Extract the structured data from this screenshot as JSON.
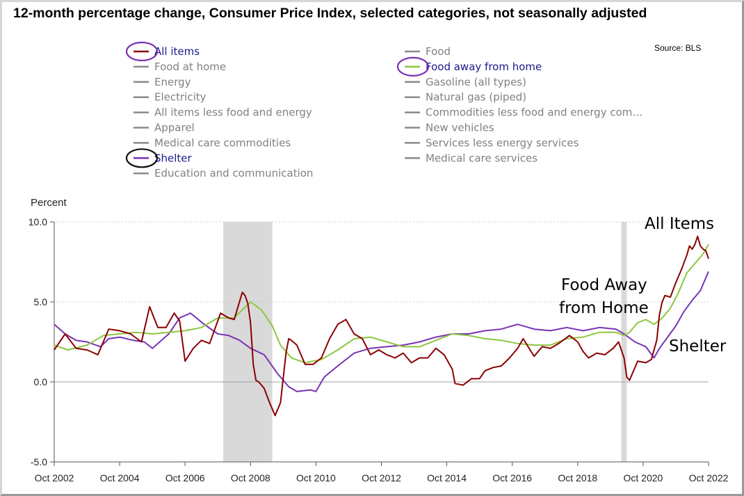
{
  "title": "12-month percentage change, Consumer Price Index, selected categories, not seasonally adjusted",
  "source": "Source: BLS",
  "legend": {
    "left": [
      {
        "label": "All items",
        "color": "#8b0000",
        "active": true
      },
      {
        "label": "Food at home",
        "color": "#8a8a8a",
        "active": false
      },
      {
        "label": "Energy",
        "color": "#8a8a8a",
        "active": false
      },
      {
        "label": "Electricity",
        "color": "#8a8a8a",
        "active": false
      },
      {
        "label": "All items less food and energy",
        "color": "#8a8a8a",
        "active": false
      },
      {
        "label": "Apparel",
        "color": "#8a8a8a",
        "active": false
      },
      {
        "label": "Medical care commodities",
        "color": "#8a8a8a",
        "active": false
      },
      {
        "label": "Shelter",
        "color": "#7a32b4",
        "active": true
      },
      {
        "label": "Education and communication",
        "color": "#8a8a8a",
        "active": false
      }
    ],
    "right": [
      {
        "label": "Food",
        "color": "#8a8a8a",
        "active": false
      },
      {
        "label": "Food away from home",
        "color": "#8dc63f",
        "active": true
      },
      {
        "label": "Gasoline (all types)",
        "color": "#8a8a8a",
        "active": false
      },
      {
        "label": "Natural gas (piped)",
        "color": "#8a8a8a",
        "active": false
      },
      {
        "label": "Commodities less food and energy com…",
        "color": "#8a8a8a",
        "active": false
      },
      {
        "label": "New vehicles",
        "color": "#8a8a8a",
        "active": false
      },
      {
        "label": "Services less energy services",
        "color": "#8a8a8a",
        "active": false
      },
      {
        "label": "Medical care services",
        "color": "#8a8a8a",
        "active": false
      }
    ]
  },
  "annotations": [
    {
      "text": "All Items"
    },
    {
      "text": "Food Away"
    },
    {
      "text": "from Home"
    },
    {
      "text": "Shelter"
    }
  ],
  "chart_data": {
    "type": "line",
    "ylabel": "Percent",
    "ylim": [
      -5.0,
      10.0
    ],
    "xlim": [
      "2002-10",
      "2022-10"
    ],
    "y_ticks": [
      -5.0,
      0.0,
      5.0,
      10.0
    ],
    "y_tick_labels": [
      "-5.0",
      "0.0",
      "5.0",
      "10.0"
    ],
    "x_ticks": [
      "2002-10",
      "2004-10",
      "2006-10",
      "2008-10",
      "2010-10",
      "2012-10",
      "2014-10",
      "2016-10",
      "2018-10",
      "2020-10",
      "2022-10"
    ],
    "x_tick_labels": [
      "Oct 2002",
      "Oct 2004",
      "Oct 2006",
      "Oct 2008",
      "Oct 2010",
      "Oct 2012",
      "Oct 2014",
      "Oct 2016",
      "Oct 2018",
      "Oct 2020",
      "Oct 2022"
    ],
    "recessions": [
      [
        "2007-12",
        "2009-06"
      ],
      [
        "2020-02",
        "2020-04"
      ]
    ],
    "grid": "dotted horizontal at 5.0 and 10.0",
    "legend_position": "top",
    "series": [
      {
        "name": "All items",
        "color": "#8b0000",
        "points": [
          [
            "2002-10",
            2.0
          ],
          [
            "2003-02",
            3.0
          ],
          [
            "2003-06",
            2.1
          ],
          [
            "2003-10",
            2.0
          ],
          [
            "2004-02",
            1.7
          ],
          [
            "2004-06",
            3.3
          ],
          [
            "2004-10",
            3.2
          ],
          [
            "2005-02",
            3.0
          ],
          [
            "2005-06",
            2.5
          ],
          [
            "2005-09",
            4.7
          ],
          [
            "2005-12",
            3.4
          ],
          [
            "2006-03",
            3.4
          ],
          [
            "2006-06",
            4.3
          ],
          [
            "2006-08",
            3.8
          ],
          [
            "2006-10",
            1.3
          ],
          [
            "2007-01",
            2.1
          ],
          [
            "2007-04",
            2.6
          ],
          [
            "2007-07",
            2.4
          ],
          [
            "2007-11",
            4.3
          ],
          [
            "2008-02",
            4.0
          ],
          [
            "2008-04",
            3.9
          ],
          [
            "2008-07",
            5.6
          ],
          [
            "2008-08",
            5.4
          ],
          [
            "2008-09",
            4.9
          ],
          [
            "2008-10",
            3.7
          ],
          [
            "2008-11",
            1.1
          ],
          [
            "2008-12",
            0.1
          ],
          [
            "2009-01",
            0.0
          ],
          [
            "2009-03",
            -0.4
          ],
          [
            "2009-05",
            -1.3
          ],
          [
            "2009-07",
            -2.1
          ],
          [
            "2009-09",
            -1.3
          ],
          [
            "2009-11",
            1.8
          ],
          [
            "2009-12",
            2.7
          ],
          [
            "2010-01",
            2.6
          ],
          [
            "2010-03",
            2.3
          ],
          [
            "2010-06",
            1.1
          ],
          [
            "2010-09",
            1.1
          ],
          [
            "2010-12",
            1.5
          ],
          [
            "2011-03",
            2.7
          ],
          [
            "2011-06",
            3.6
          ],
          [
            "2011-09",
            3.9
          ],
          [
            "2011-12",
            3.0
          ],
          [
            "2012-03",
            2.7
          ],
          [
            "2012-06",
            1.7
          ],
          [
            "2012-09",
            2.0
          ],
          [
            "2012-12",
            1.7
          ],
          [
            "2013-03",
            1.5
          ],
          [
            "2013-06",
            1.8
          ],
          [
            "2013-09",
            1.2
          ],
          [
            "2013-12",
            1.5
          ],
          [
            "2014-03",
            1.5
          ],
          [
            "2014-06",
            2.1
          ],
          [
            "2014-09",
            1.7
          ],
          [
            "2014-12",
            0.8
          ],
          [
            "2015-01",
            -0.1
          ],
          [
            "2015-04",
            -0.2
          ],
          [
            "2015-07",
            0.2
          ],
          [
            "2015-10",
            0.2
          ],
          [
            "2015-12",
            0.7
          ],
          [
            "2016-03",
            0.9
          ],
          [
            "2016-06",
            1.0
          ],
          [
            "2016-09",
            1.5
          ],
          [
            "2016-12",
            2.1
          ],
          [
            "2017-02",
            2.7
          ],
          [
            "2017-06",
            1.6
          ],
          [
            "2017-09",
            2.2
          ],
          [
            "2017-12",
            2.1
          ],
          [
            "2018-03",
            2.4
          ],
          [
            "2018-07",
            2.9
          ],
          [
            "2018-10",
            2.5
          ],
          [
            "2018-12",
            1.9
          ],
          [
            "2019-02",
            1.5
          ],
          [
            "2019-05",
            1.8
          ],
          [
            "2019-08",
            1.7
          ],
          [
            "2019-11",
            2.1
          ],
          [
            "2020-01",
            2.5
          ],
          [
            "2020-03",
            1.5
          ],
          [
            "2020-04",
            0.3
          ],
          [
            "2020-05",
            0.1
          ],
          [
            "2020-08",
            1.3
          ],
          [
            "2020-11",
            1.2
          ],
          [
            "2021-01",
            1.4
          ],
          [
            "2021-03",
            2.6
          ],
          [
            "2021-04",
            4.2
          ],
          [
            "2021-05",
            5.0
          ],
          [
            "2021-06",
            5.4
          ],
          [
            "2021-08",
            5.3
          ],
          [
            "2021-10",
            6.2
          ],
          [
            "2021-12",
            7.0
          ],
          [
            "2022-02",
            7.9
          ],
          [
            "2022-03",
            8.5
          ],
          [
            "2022-04",
            8.3
          ],
          [
            "2022-05",
            8.6
          ],
          [
            "2022-06",
            9.1
          ],
          [
            "2022-07",
            8.5
          ],
          [
            "2022-08",
            8.3
          ],
          [
            "2022-09",
            8.2
          ],
          [
            "2022-10",
            7.7
          ]
        ]
      },
      {
        "name": "Food away from home",
        "color": "#8dc63f",
        "points": [
          [
            "2002-10",
            2.3
          ],
          [
            "2003-03",
            2.0
          ],
          [
            "2003-10",
            2.3
          ],
          [
            "2004-04",
            2.9
          ],
          [
            "2004-10",
            3.0
          ],
          [
            "2005-04",
            3.1
          ],
          [
            "2005-10",
            3.0
          ],
          [
            "2006-04",
            3.1
          ],
          [
            "2006-10",
            3.2
          ],
          [
            "2007-04",
            3.4
          ],
          [
            "2007-10",
            4.0
          ],
          [
            "2008-04",
            4.0
          ],
          [
            "2008-10",
            5.0
          ],
          [
            "2009-02",
            4.5
          ],
          [
            "2009-06",
            3.5
          ],
          [
            "2009-09",
            2.3
          ],
          [
            "2010-01",
            1.5
          ],
          [
            "2010-06",
            1.2
          ],
          [
            "2010-12",
            1.4
          ],
          [
            "2011-06",
            2.0
          ],
          [
            "2011-12",
            2.7
          ],
          [
            "2012-06",
            2.8
          ],
          [
            "2012-12",
            2.5
          ],
          [
            "2013-06",
            2.2
          ],
          [
            "2013-12",
            2.2
          ],
          [
            "2014-06",
            2.6
          ],
          [
            "2014-12",
            3.0
          ],
          [
            "2015-06",
            2.9
          ],
          [
            "2015-12",
            2.7
          ],
          [
            "2016-06",
            2.6
          ],
          [
            "2016-12",
            2.4
          ],
          [
            "2017-06",
            2.3
          ],
          [
            "2017-12",
            2.3
          ],
          [
            "2018-06",
            2.7
          ],
          [
            "2018-12",
            2.8
          ],
          [
            "2019-06",
            3.1
          ],
          [
            "2019-12",
            3.1
          ],
          [
            "2020-03",
            2.9
          ],
          [
            "2020-05",
            3.1
          ],
          [
            "2020-08",
            3.7
          ],
          [
            "2020-11",
            3.9
          ],
          [
            "2021-02",
            3.6
          ],
          [
            "2021-05",
            4.0
          ],
          [
            "2021-08",
            4.6
          ],
          [
            "2021-11",
            5.6
          ],
          [
            "2022-02",
            6.8
          ],
          [
            "2022-05",
            7.4
          ],
          [
            "2022-08",
            8.0
          ],
          [
            "2022-10",
            8.6
          ]
        ]
      },
      {
        "name": "Shelter",
        "color": "#7a32b4",
        "points": [
          [
            "2002-10",
            3.6
          ],
          [
            "2003-02",
            3.0
          ],
          [
            "2003-06",
            2.6
          ],
          [
            "2003-10",
            2.5
          ],
          [
            "2004-03",
            2.2
          ],
          [
            "2004-06",
            2.7
          ],
          [
            "2004-10",
            2.8
          ],
          [
            "2005-03",
            2.6
          ],
          [
            "2005-07",
            2.5
          ],
          [
            "2005-10",
            2.1
          ],
          [
            "2006-04",
            3.0
          ],
          [
            "2006-08",
            4.0
          ],
          [
            "2006-12",
            4.3
          ],
          [
            "2007-05",
            3.6
          ],
          [
            "2007-10",
            3.0
          ],
          [
            "2008-02",
            2.9
          ],
          [
            "2008-06",
            2.6
          ],
          [
            "2008-10",
            2.1
          ],
          [
            "2009-03",
            1.7
          ],
          [
            "2009-08",
            0.5
          ],
          [
            "2009-12",
            -0.3
          ],
          [
            "2010-03",
            -0.6
          ],
          [
            "2010-08",
            -0.5
          ],
          [
            "2010-10",
            -0.6
          ],
          [
            "2011-01",
            0.3
          ],
          [
            "2011-06",
            1.0
          ],
          [
            "2011-12",
            1.8
          ],
          [
            "2012-06",
            2.1
          ],
          [
            "2012-12",
            2.2
          ],
          [
            "2013-06",
            2.3
          ],
          [
            "2013-12",
            2.5
          ],
          [
            "2014-06",
            2.8
          ],
          [
            "2014-12",
            3.0
          ],
          [
            "2015-06",
            3.0
          ],
          [
            "2015-12",
            3.2
          ],
          [
            "2016-06",
            3.3
          ],
          [
            "2016-12",
            3.6
          ],
          [
            "2017-06",
            3.3
          ],
          [
            "2017-12",
            3.2
          ],
          [
            "2018-06",
            3.4
          ],
          [
            "2018-12",
            3.2
          ],
          [
            "2019-06",
            3.4
          ],
          [
            "2019-12",
            3.3
          ],
          [
            "2020-03",
            3.0
          ],
          [
            "2020-07",
            2.5
          ],
          [
            "2020-11",
            2.2
          ],
          [
            "2021-02",
            1.5
          ],
          [
            "2021-04",
            2.1
          ],
          [
            "2021-07",
            2.8
          ],
          [
            "2021-10",
            3.5
          ],
          [
            "2022-01",
            4.4
          ],
          [
            "2022-04",
            5.1
          ],
          [
            "2022-07",
            5.7
          ],
          [
            "2022-10",
            6.9
          ]
        ]
      }
    ]
  }
}
